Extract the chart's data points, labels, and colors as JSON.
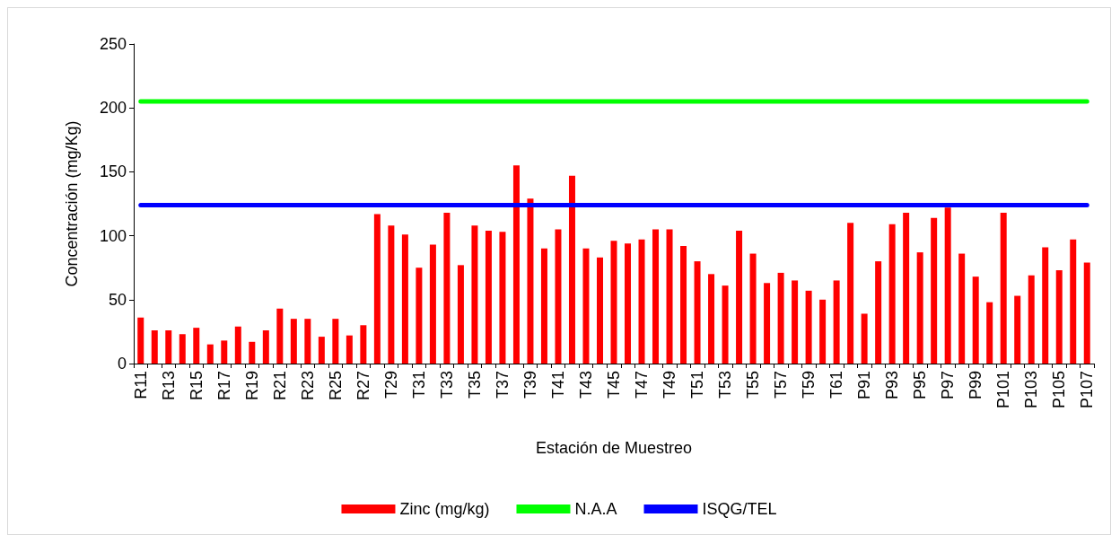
{
  "chart_data": {
    "type": "bar",
    "xlabel": "Estación de Muestreo",
    "ylabel": "Concentración (mg/Kg)",
    "categories": [
      "R11",
      null,
      "R13",
      null,
      "R15",
      null,
      "R17",
      null,
      "R19",
      null,
      "R21",
      null,
      "R23",
      null,
      "R25",
      null,
      "R27",
      null,
      "T29",
      null,
      "T31",
      null,
      "T33",
      null,
      "T35",
      null,
      "T37",
      null,
      "T39",
      null,
      "T41",
      null,
      "T43",
      null,
      "T45",
      null,
      "T47",
      null,
      "T49",
      null,
      "T51",
      null,
      "T53",
      null,
      "T55",
      null,
      "T57",
      null,
      "T59",
      null,
      "T61",
      null,
      "P91",
      null,
      "P93",
      null,
      "P95",
      null,
      "P97",
      null,
      "P99",
      null,
      "P101",
      null,
      "P103",
      null,
      "P105",
      null,
      "P107"
    ],
    "series": [
      {
        "name": "Zinc (mg/kg)",
        "color": "#ff0000",
        "values": [
          36,
          26,
          26,
          23,
          28,
          15,
          18,
          29,
          17,
          26,
          43,
          35,
          35,
          21,
          35,
          22,
          30,
          117,
          108,
          101,
          75,
          93,
          118,
          77,
          108,
          104,
          103,
          155,
          129,
          90,
          105,
          147,
          90,
          83,
          96,
          94,
          97,
          105,
          105,
          92,
          80,
          70,
          61,
          104,
          86,
          63,
          71,
          65,
          57,
          50,
          65,
          110,
          39,
          80,
          109,
          118,
          87,
          114,
          122,
          86,
          68,
          48,
          118,
          53,
          69,
          91,
          73,
          97,
          79
        ]
      },
      {
        "name": "N.A.A",
        "type": "line",
        "color": "#00ff00",
        "values": [
          205,
          205,
          205,
          205,
          205,
          205,
          205,
          205,
          205,
          205,
          205,
          205,
          205,
          205,
          205,
          205,
          205,
          205,
          205,
          205,
          205,
          205,
          205,
          205,
          205,
          205,
          205,
          205,
          205,
          205,
          205,
          205,
          205,
          205,
          205,
          205,
          205,
          205,
          205,
          205,
          205,
          205,
          205,
          205,
          205,
          205,
          205,
          205,
          205,
          205,
          205,
          205,
          205,
          205,
          205,
          205,
          205,
          205,
          205,
          205,
          205,
          205,
          205,
          205,
          205,
          205,
          205,
          205,
          205
        ]
      },
      {
        "name": "ISQG/TEL",
        "type": "line",
        "color": "#0000ff",
        "values": [
          124,
          124,
          124,
          124,
          124,
          124,
          124,
          124,
          124,
          124,
          124,
          124,
          124,
          124,
          124,
          124,
          124,
          124,
          124,
          124,
          124,
          124,
          124,
          124,
          124,
          124,
          124,
          124,
          124,
          124,
          124,
          124,
          124,
          124,
          124,
          124,
          124,
          124,
          124,
          124,
          124,
          124,
          124,
          124,
          124,
          124,
          124,
          124,
          124,
          124,
          124,
          124,
          124,
          124,
          124,
          124,
          124,
          124,
          124,
          124,
          124,
          124,
          124,
          124,
          124,
          124,
          124,
          124,
          124
        ]
      }
    ],
    "ylim": [
      0,
      250
    ],
    "yticks": [
      0,
      50,
      100,
      150,
      200,
      250
    ],
    "grid": false,
    "legend": "bottom",
    "marker": "none"
  }
}
